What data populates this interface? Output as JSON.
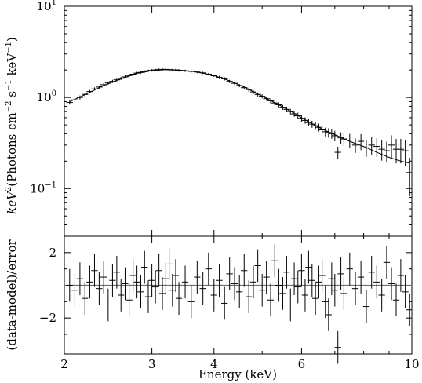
{
  "chart_data": [
    {
      "type": "scatter",
      "panel": "top",
      "ylabel_main": "keV",
      "ylabel_sup": "2",
      "ylabel_rest": "(Photons cm",
      "ylabel_unit_1_sup": "−2",
      "ylabel_unit_2": " s",
      "ylabel_unit_2_sup": "−1",
      "ylabel_unit_3": " keV",
      "ylabel_unit_3_sup": "−1",
      "ylabel_end": ")",
      "yscale": "log",
      "ylim": [
        0.03,
        10
      ],
      "xscale": "log",
      "xlim": [
        2,
        10
      ],
      "yticks": [
        {
          "value": 0.1,
          "base": "10",
          "exp": "−1"
        },
        {
          "value": 1,
          "base": "10",
          "exp": "0"
        },
        {
          "value": 10,
          "base": "10",
          "exp": "1"
        }
      ],
      "data_points": {
        "x": [
          2.05,
          2.1,
          2.15,
          2.2,
          2.25,
          2.3,
          2.35,
          2.4,
          2.45,
          2.5,
          2.55,
          2.6,
          2.65,
          2.7,
          2.75,
          2.8,
          2.85,
          2.9,
          2.95,
          3.0,
          3.05,
          3.1,
          3.15,
          3.2,
          3.25,
          3.3,
          3.35,
          3.4,
          3.5,
          3.6,
          3.7,
          3.8,
          3.9,
          4.0,
          4.1,
          4.2,
          4.3,
          4.4,
          4.5,
          4.6,
          4.7,
          4.8,
          4.9,
          5.0,
          5.1,
          5.2,
          5.3,
          5.4,
          5.5,
          5.6,
          5.7,
          5.8,
          5.9,
          6.0,
          6.1,
          6.2,
          6.3,
          6.4,
          6.5,
          6.6,
          6.7,
          6.8,
          6.9,
          7.0,
          7.1,
          7.2,
          7.3,
          7.5,
          7.7,
          7.9,
          8.1,
          8.3,
          8.5,
          8.7,
          8.9,
          9.1,
          9.3,
          9.5,
          9.7,
          9.9
        ],
        "y": [
          0.88,
          0.94,
          1.0,
          1.08,
          1.16,
          1.24,
          1.3,
          1.38,
          1.44,
          1.5,
          1.56,
          1.62,
          1.68,
          1.74,
          1.8,
          1.85,
          1.88,
          1.92,
          1.96,
          1.98,
          2.0,
          2.02,
          2.03,
          2.03,
          2.02,
          2.0,
          2.0,
          1.98,
          1.96,
          1.93,
          1.9,
          1.86,
          1.8,
          1.73,
          1.66,
          1.6,
          1.5,
          1.43,
          1.35,
          1.28,
          1.22,
          1.15,
          1.08,
          1.03,
          0.97,
          0.92,
          0.87,
          0.83,
          0.78,
          0.74,
          0.7,
          0.66,
          0.63,
          0.59,
          0.56,
          0.53,
          0.51,
          0.49,
          0.47,
          0.44,
          0.42,
          0.41,
          0.4,
          0.38,
          0.25,
          0.36,
          0.35,
          0.34,
          0.3,
          0.33,
          0.28,
          0.3,
          0.29,
          0.27,
          0.26,
          0.3,
          0.27,
          0.27,
          0.26,
          0.15
        ],
        "yerr_frac": [
          0.05,
          0.05,
          0.05,
          0.05,
          0.04,
          0.04,
          0.04,
          0.04,
          0.04,
          0.04,
          0.04,
          0.04,
          0.04,
          0.04,
          0.04,
          0.03,
          0.03,
          0.03,
          0.03,
          0.03,
          0.03,
          0.03,
          0.03,
          0.03,
          0.03,
          0.03,
          0.03,
          0.03,
          0.03,
          0.03,
          0.03,
          0.03,
          0.03,
          0.03,
          0.04,
          0.04,
          0.04,
          0.04,
          0.04,
          0.04,
          0.05,
          0.05,
          0.05,
          0.05,
          0.05,
          0.06,
          0.06,
          0.06,
          0.06,
          0.07,
          0.07,
          0.07,
          0.08,
          0.08,
          0.08,
          0.09,
          0.09,
          0.1,
          0.1,
          0.1,
          0.11,
          0.12,
          0.12,
          0.13,
          0.15,
          0.15,
          0.16,
          0.17,
          0.18,
          0.2,
          0.2,
          0.22,
          0.23,
          0.25,
          0.26,
          0.28,
          0.3,
          0.3,
          0.32,
          0.45
        ]
      },
      "model_line": {
        "x": [
          2.05,
          2.2,
          2.4,
          2.6,
          2.8,
          3.0,
          3.2,
          3.4,
          3.6,
          3.8,
          4.0,
          4.3,
          4.6,
          5.0,
          5.4,
          5.8,
          6.2,
          6.6,
          7.0,
          7.5,
          8.0,
          8.5,
          9.0,
          9.5,
          9.9
        ],
        "y": [
          0.9,
          1.07,
          1.35,
          1.6,
          1.84,
          1.97,
          2.02,
          2.0,
          1.94,
          1.85,
          1.74,
          1.52,
          1.3,
          1.03,
          0.83,
          0.67,
          0.54,
          0.45,
          0.39,
          0.33,
          0.29,
          0.25,
          0.22,
          0.2,
          0.19
        ]
      }
    },
    {
      "type": "scatter",
      "panel": "bottom",
      "ylabel": "(data-model)/error",
      "xlabel": "Energy (keV)",
      "ylim": [
        -4.2,
        3.0
      ],
      "xscale": "log",
      "xlim": [
        2,
        10
      ],
      "yticks": [
        {
          "value": -2,
          "label": "−2"
        },
        {
          "value": 2,
          "label": "2"
        }
      ],
      "xticks": [
        {
          "value": 2,
          "label": "2"
        },
        {
          "value": 3,
          "label": "3"
        },
        {
          "value": 4,
          "label": "4"
        },
        {
          "value": 6,
          "label": "6"
        },
        {
          "value": 10,
          "label": "10"
        }
      ],
      "zero_line_color": "#2ca02c",
      "residuals": {
        "x": [
          2.05,
          2.1,
          2.15,
          2.2,
          2.25,
          2.3,
          2.35,
          2.4,
          2.45,
          2.5,
          2.55,
          2.6,
          2.65,
          2.7,
          2.75,
          2.8,
          2.85,
          2.9,
          2.95,
          3.0,
          3.05,
          3.1,
          3.15,
          3.2,
          3.25,
          3.3,
          3.35,
          3.4,
          3.5,
          3.6,
          3.7,
          3.8,
          3.9,
          4.0,
          4.1,
          4.2,
          4.3,
          4.4,
          4.5,
          4.6,
          4.7,
          4.8,
          4.9,
          5.0,
          5.1,
          5.2,
          5.3,
          5.4,
          5.5,
          5.6,
          5.7,
          5.8,
          5.9,
          6.0,
          6.1,
          6.2,
          6.3,
          6.4,
          6.5,
          6.6,
          6.7,
          6.8,
          6.9,
          7.0,
          7.1,
          7.2,
          7.3,
          7.5,
          7.7,
          7.9,
          8.1,
          8.3,
          8.5,
          8.7,
          8.9,
          9.1,
          9.3,
          9.5,
          9.7,
          9.9
        ],
        "y": [
          0.0,
          -0.3,
          0.4,
          -0.8,
          0.2,
          0.9,
          -0.2,
          0.5,
          -1.2,
          0.3,
          0.8,
          -0.6,
          0.1,
          -0.9,
          0.6,
          0.2,
          -0.4,
          1.1,
          -0.7,
          0.3,
          -0.1,
          0.9,
          -0.5,
          0.4,
          1.3,
          -0.3,
          0.6,
          -0.8,
          0.2,
          -1.0,
          0.5,
          -0.2,
          1.0,
          -0.6,
          0.3,
          -1.1,
          0.7,
          0.1,
          -0.4,
          0.9,
          -0.7,
          0.2,
          1.2,
          -0.3,
          0.5,
          -0.9,
          1.5,
          0.0,
          -0.5,
          0.8,
          -1.2,
          0.4,
          -0.1,
          0.9,
          -0.6,
          1.1,
          0.3,
          -0.8,
          0.2,
          0.6,
          -1.0,
          -1.8,
          0.4,
          -0.3,
          -3.8,
          0.7,
          -0.5,
          1.0,
          -0.2,
          0.5,
          -1.3,
          0.8,
          0.2,
          -0.6,
          1.4,
          0.1,
          -0.9,
          0.6,
          -0.4,
          -1.5
        ]
      }
    }
  ]
}
